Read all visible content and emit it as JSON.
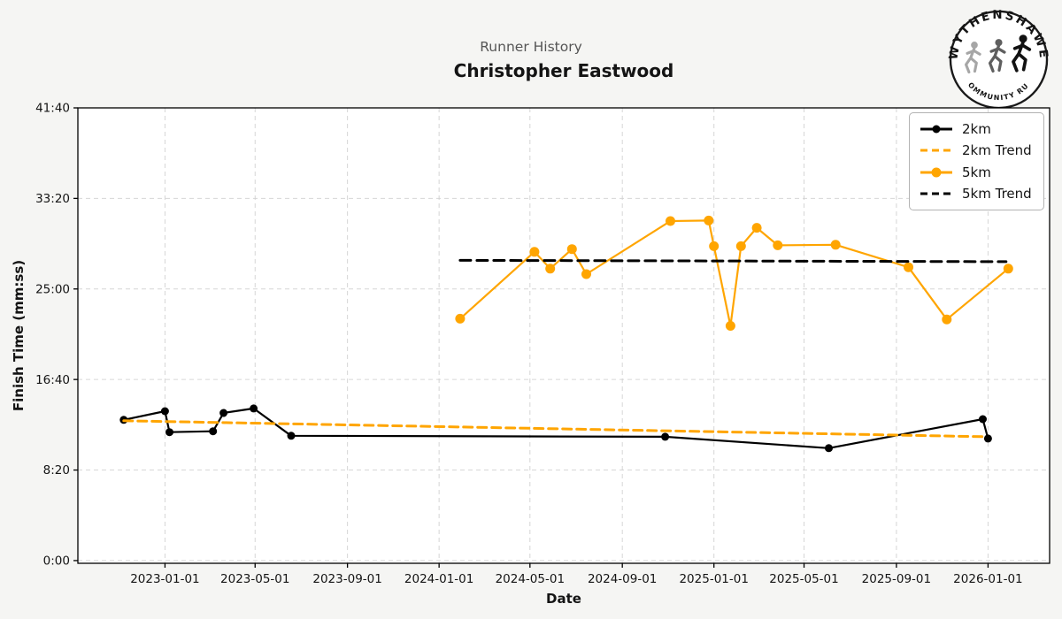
{
  "logo": {
    "top_text": "WYTHENSHAWE",
    "bottom_text": "COMMUNITY RUN"
  },
  "colors": {
    "black_series": "#000000",
    "orange_series": "#FFA500",
    "grid": "#cfcfcf",
    "title": "#141414",
    "subtitle": "#555555",
    "figure_background": "#f5f5f3",
    "plot_background": "#ffffff",
    "legend_border": "#b3b3b3"
  },
  "chart_data": {
    "type": "line",
    "subtitle": "Runner History",
    "title": "Christopher Eastwood",
    "xlabel": "Date",
    "ylabel": "Finish Time (mm:ss)",
    "grid": true,
    "legend_position": "upper right",
    "x_ticks": [
      "2023-01-01",
      "2023-05-01",
      "2023-09-01",
      "2024-01-01",
      "2024-05-01",
      "2024-09-01",
      "2025-01-01",
      "2025-05-01",
      "2025-09-01",
      "2026-01-01"
    ],
    "y_ticks": [
      "0:00",
      "8:20",
      "16:40",
      "25:00",
      "33:20",
      "41:40"
    ],
    "ylim_seconds": [
      -15,
      2500
    ],
    "xlim_dates": [
      "2022-09-07",
      "2026-03-24"
    ],
    "series": [
      {
        "name": "2km",
        "color": "#000000",
        "line_style": "solid",
        "markers": true,
        "points": [
          {
            "date": "2022-11-07",
            "time": "12:57"
          },
          {
            "date": "2023-01-01",
            "time": "13:45"
          },
          {
            "date": "2023-01-07",
            "time": "11:49"
          },
          {
            "date": "2023-03-06",
            "time": "11:54"
          },
          {
            "date": "2023-03-20",
            "time": "13:35"
          },
          {
            "date": "2023-04-29",
            "time": "14:00"
          },
          {
            "date": "2023-06-18",
            "time": "11:29"
          },
          {
            "date": "2024-10-28",
            "time": "11:24"
          },
          {
            "date": "2025-06-03",
            "time": "10:21"
          },
          {
            "date": "2025-12-25",
            "time": "13:01"
          },
          {
            "date": "2026-01-01",
            "time": "11:14"
          }
        ]
      },
      {
        "name": "2km Trend",
        "color": "#FFA500",
        "line_style": "dashed",
        "markers": false,
        "points": [
          {
            "date": "2022-11-07",
            "time": "12:52"
          },
          {
            "date": "2025-12-30",
            "time": "11:24"
          }
        ]
      },
      {
        "name": "5km",
        "color": "#FFA500",
        "line_style": "solid",
        "markers": true,
        "points": [
          {
            "date": "2024-01-29",
            "time": "22:16"
          },
          {
            "date": "2024-05-07",
            "time": "28:25"
          },
          {
            "date": "2024-05-28",
            "time": "26:52"
          },
          {
            "date": "2024-06-26",
            "time": "28:40"
          },
          {
            "date": "2024-07-15",
            "time": "26:22"
          },
          {
            "date": "2024-11-04",
            "time": "31:15"
          },
          {
            "date": "2024-12-25",
            "time": "31:18"
          },
          {
            "date": "2025-01-01",
            "time": "28:56"
          },
          {
            "date": "2025-01-23",
            "time": "21:36"
          },
          {
            "date": "2025-02-06",
            "time": "28:56"
          },
          {
            "date": "2025-02-27",
            "time": "30:38"
          },
          {
            "date": "2025-03-27",
            "time": "29:01"
          },
          {
            "date": "2025-06-12",
            "time": "29:04"
          },
          {
            "date": "2025-09-17",
            "time": "27:00"
          },
          {
            "date": "2025-11-07",
            "time": "22:12"
          },
          {
            "date": "2026-01-28",
            "time": "26:52"
          }
        ]
      },
      {
        "name": "5km Trend",
        "color": "#000000",
        "line_style": "dashed",
        "markers": false,
        "points": [
          {
            "date": "2024-01-29",
            "time": "27:38"
          },
          {
            "date": "2026-01-25",
            "time": "27:31"
          }
        ]
      }
    ]
  }
}
